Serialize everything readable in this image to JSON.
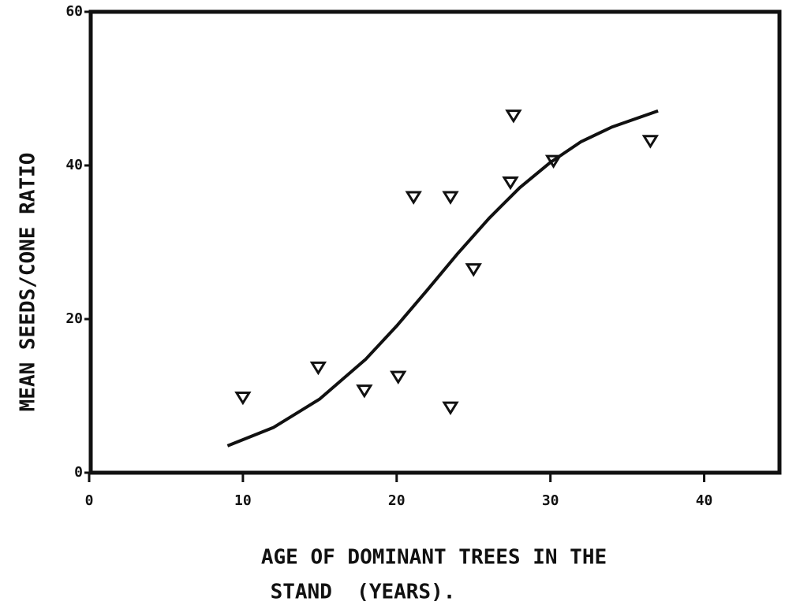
{
  "chart_data": {
    "type": "scatter",
    "x_label": [
      "AGE OF DOMINANT TREES IN THE",
      "STAND  (YEARS)."
    ],
    "y_label": "MEAN SEEDS/CONE RATIO",
    "points": {
      "x": [
        10,
        14.9,
        17.9,
        20.1,
        21.1,
        23.5,
        23.5,
        25.0,
        27.4,
        27.6,
        30.2,
        36.5
      ],
      "y": [
        9.8,
        13.7,
        10.7,
        12.5,
        35.9,
        35.9,
        8.5,
        26.5,
        37.8,
        46.5,
        40.6,
        43.2
      ]
    },
    "curve": {
      "x": [
        9,
        12,
        15,
        18,
        20,
        22,
        24,
        26,
        28,
        30,
        32,
        34,
        37
      ],
      "y": [
        3.5,
        5.9,
        9.6,
        14.8,
        19.1,
        23.8,
        28.6,
        33.1,
        37.1,
        40.4,
        43.1,
        45.0,
        47.1
      ]
    },
    "color": "#111111",
    "xlim": [
      0,
      45
    ],
    "xticks": [
      0,
      10,
      20,
      30,
      40
    ],
    "ylim": [
      0,
      60
    ],
    "yticks": [
      0,
      20,
      40,
      60
    ]
  }
}
